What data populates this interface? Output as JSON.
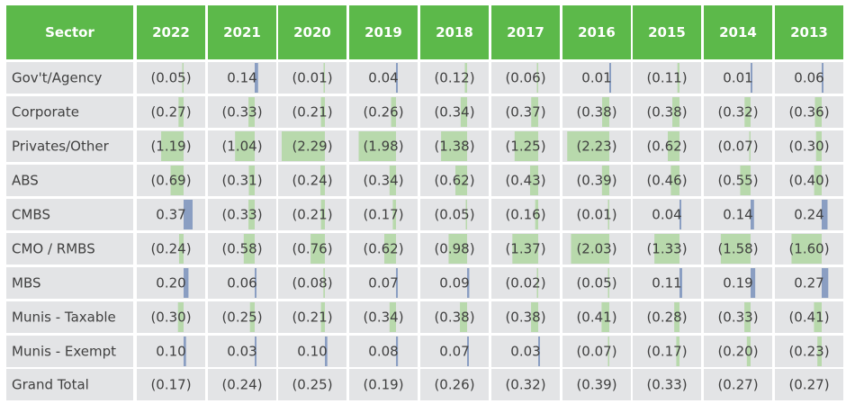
{
  "colors": {
    "header_bg": "#5cb94a",
    "cell_bg": "#e3e4e6",
    "negative_bar": "#b8d9ac",
    "positive_bar": "#8a9ec2",
    "text": "#404040",
    "header_text": "#ffffff"
  },
  "chart_data": {
    "type": "table",
    "display": "accounting format with in-cell data bars; negative values shown in brackets",
    "bar_colors": {
      "negative": "green",
      "positive": "blue"
    },
    "header_label": "Sector",
    "columns": [
      "2022",
      "2021",
      "2020",
      "2019",
      "2018",
      "2017",
      "2016",
      "2015",
      "2014",
      "2013"
    ],
    "rows": [
      {
        "label": "Gov't/Agency",
        "values": [
          -0.05,
          0.14,
          -0.01,
          0.04,
          -0.12,
          -0.06,
          0.01,
          -0.11,
          0.01,
          0.06
        ],
        "labels": [
          "(0.05)",
          "0.14",
          "(0.01)",
          "0.04",
          "(0.12)",
          "(0.06)",
          "0.01",
          "(0.11)",
          "0.01",
          "0.06"
        ]
      },
      {
        "label": "Corporate",
        "values": [
          -0.27,
          -0.33,
          -0.21,
          -0.26,
          -0.34,
          -0.37,
          -0.38,
          -0.38,
          -0.32,
          -0.36
        ],
        "labels": [
          "(0.27)",
          "(0.33)",
          "(0.21)",
          "(0.26)",
          "(0.34)",
          "(0.37)",
          "(0.38)",
          "(0.38)",
          "(0.32)",
          "(0.36)"
        ]
      },
      {
        "label": "Privates/Other",
        "values": [
          -1.19,
          -1.04,
          -2.29,
          -1.98,
          -1.38,
          -1.25,
          -2.23,
          -0.62,
          -0.07,
          -0.3
        ],
        "labels": [
          "(1.19)",
          "(1.04)",
          "(2.29)",
          "(1.98)",
          "(1.38)",
          "(1.25)",
          "(2.23)",
          "(0.62)",
          "(0.07)",
          "(0.30)"
        ]
      },
      {
        "label": "ABS",
        "values": [
          -0.69,
          -0.31,
          -0.24,
          -0.34,
          -0.62,
          -0.43,
          -0.39,
          -0.46,
          -0.55,
          -0.4
        ],
        "labels": [
          "(0.69)",
          "(0.31)",
          "(0.24)",
          "(0.34)",
          "(0.62)",
          "(0.43)",
          "(0.39)",
          "(0.46)",
          "(0.55)",
          "(0.40)"
        ]
      },
      {
        "label": "CMBS",
        "values": [
          0.37,
          -0.33,
          -0.21,
          -0.17,
          -0.05,
          -0.16,
          -0.01,
          0.04,
          0.14,
          0.24
        ],
        "labels": [
          "0.37",
          "(0.33)",
          "(0.21)",
          "(0.17)",
          "(0.05)",
          "(0.16)",
          "(0.01)",
          "0.04",
          "0.14",
          "0.24"
        ]
      },
      {
        "label": "CMO / RMBS",
        "values": [
          -0.24,
          -0.58,
          -0.76,
          -0.62,
          -0.98,
          -1.37,
          -2.03,
          -1.33,
          -1.58,
          -1.6
        ],
        "labels": [
          "(0.24)",
          "(0.58)",
          "(0.76)",
          "(0.62)",
          "(0.98)",
          "(1.37)",
          "(2.03)",
          "(1.33)",
          "(1.58)",
          "(1.60)"
        ]
      },
      {
        "label": "MBS",
        "values": [
          0.2,
          0.06,
          -0.08,
          0.07,
          0.09,
          -0.02,
          -0.05,
          0.11,
          0.19,
          0.27
        ],
        "labels": [
          "0.20",
          "0.06",
          "(0.08)",
          "0.07",
          "0.09",
          "(0.02)",
          "(0.05)",
          "0.11",
          "0.19",
          "0.27"
        ]
      },
      {
        "label": "Munis - Taxable",
        "values": [
          -0.3,
          -0.25,
          -0.21,
          -0.34,
          -0.38,
          -0.38,
          -0.41,
          -0.28,
          -0.33,
          -0.41
        ],
        "labels": [
          "(0.30)",
          "(0.25)",
          "(0.21)",
          "(0.34)",
          "(0.38)",
          "(0.38)",
          "(0.41)",
          "(0.28)",
          "(0.33)",
          "(0.41)"
        ]
      },
      {
        "label": "Munis - Exempt",
        "values": [
          0.1,
          0.03,
          0.1,
          0.08,
          0.07,
          0.03,
          -0.07,
          -0.17,
          -0.2,
          -0.23
        ],
        "labels": [
          "0.10",
          "0.03",
          "0.10",
          "0.08",
          "0.07",
          "0.03",
          "(0.07)",
          "(0.17)",
          "(0.20)",
          "(0.23)"
        ]
      }
    ],
    "total_row": {
      "label": "Grand Total",
      "values": [
        -0.17,
        -0.24,
        -0.25,
        -0.19,
        -0.26,
        -0.32,
        -0.39,
        -0.33,
        -0.27,
        -0.27
      ],
      "labels": [
        "(0.17)",
        "(0.24)",
        "(0.25)",
        "(0.19)",
        "(0.26)",
        "(0.32)",
        "(0.39)",
        "(0.33)",
        "(0.27)",
        "(0.27)"
      ]
    }
  }
}
